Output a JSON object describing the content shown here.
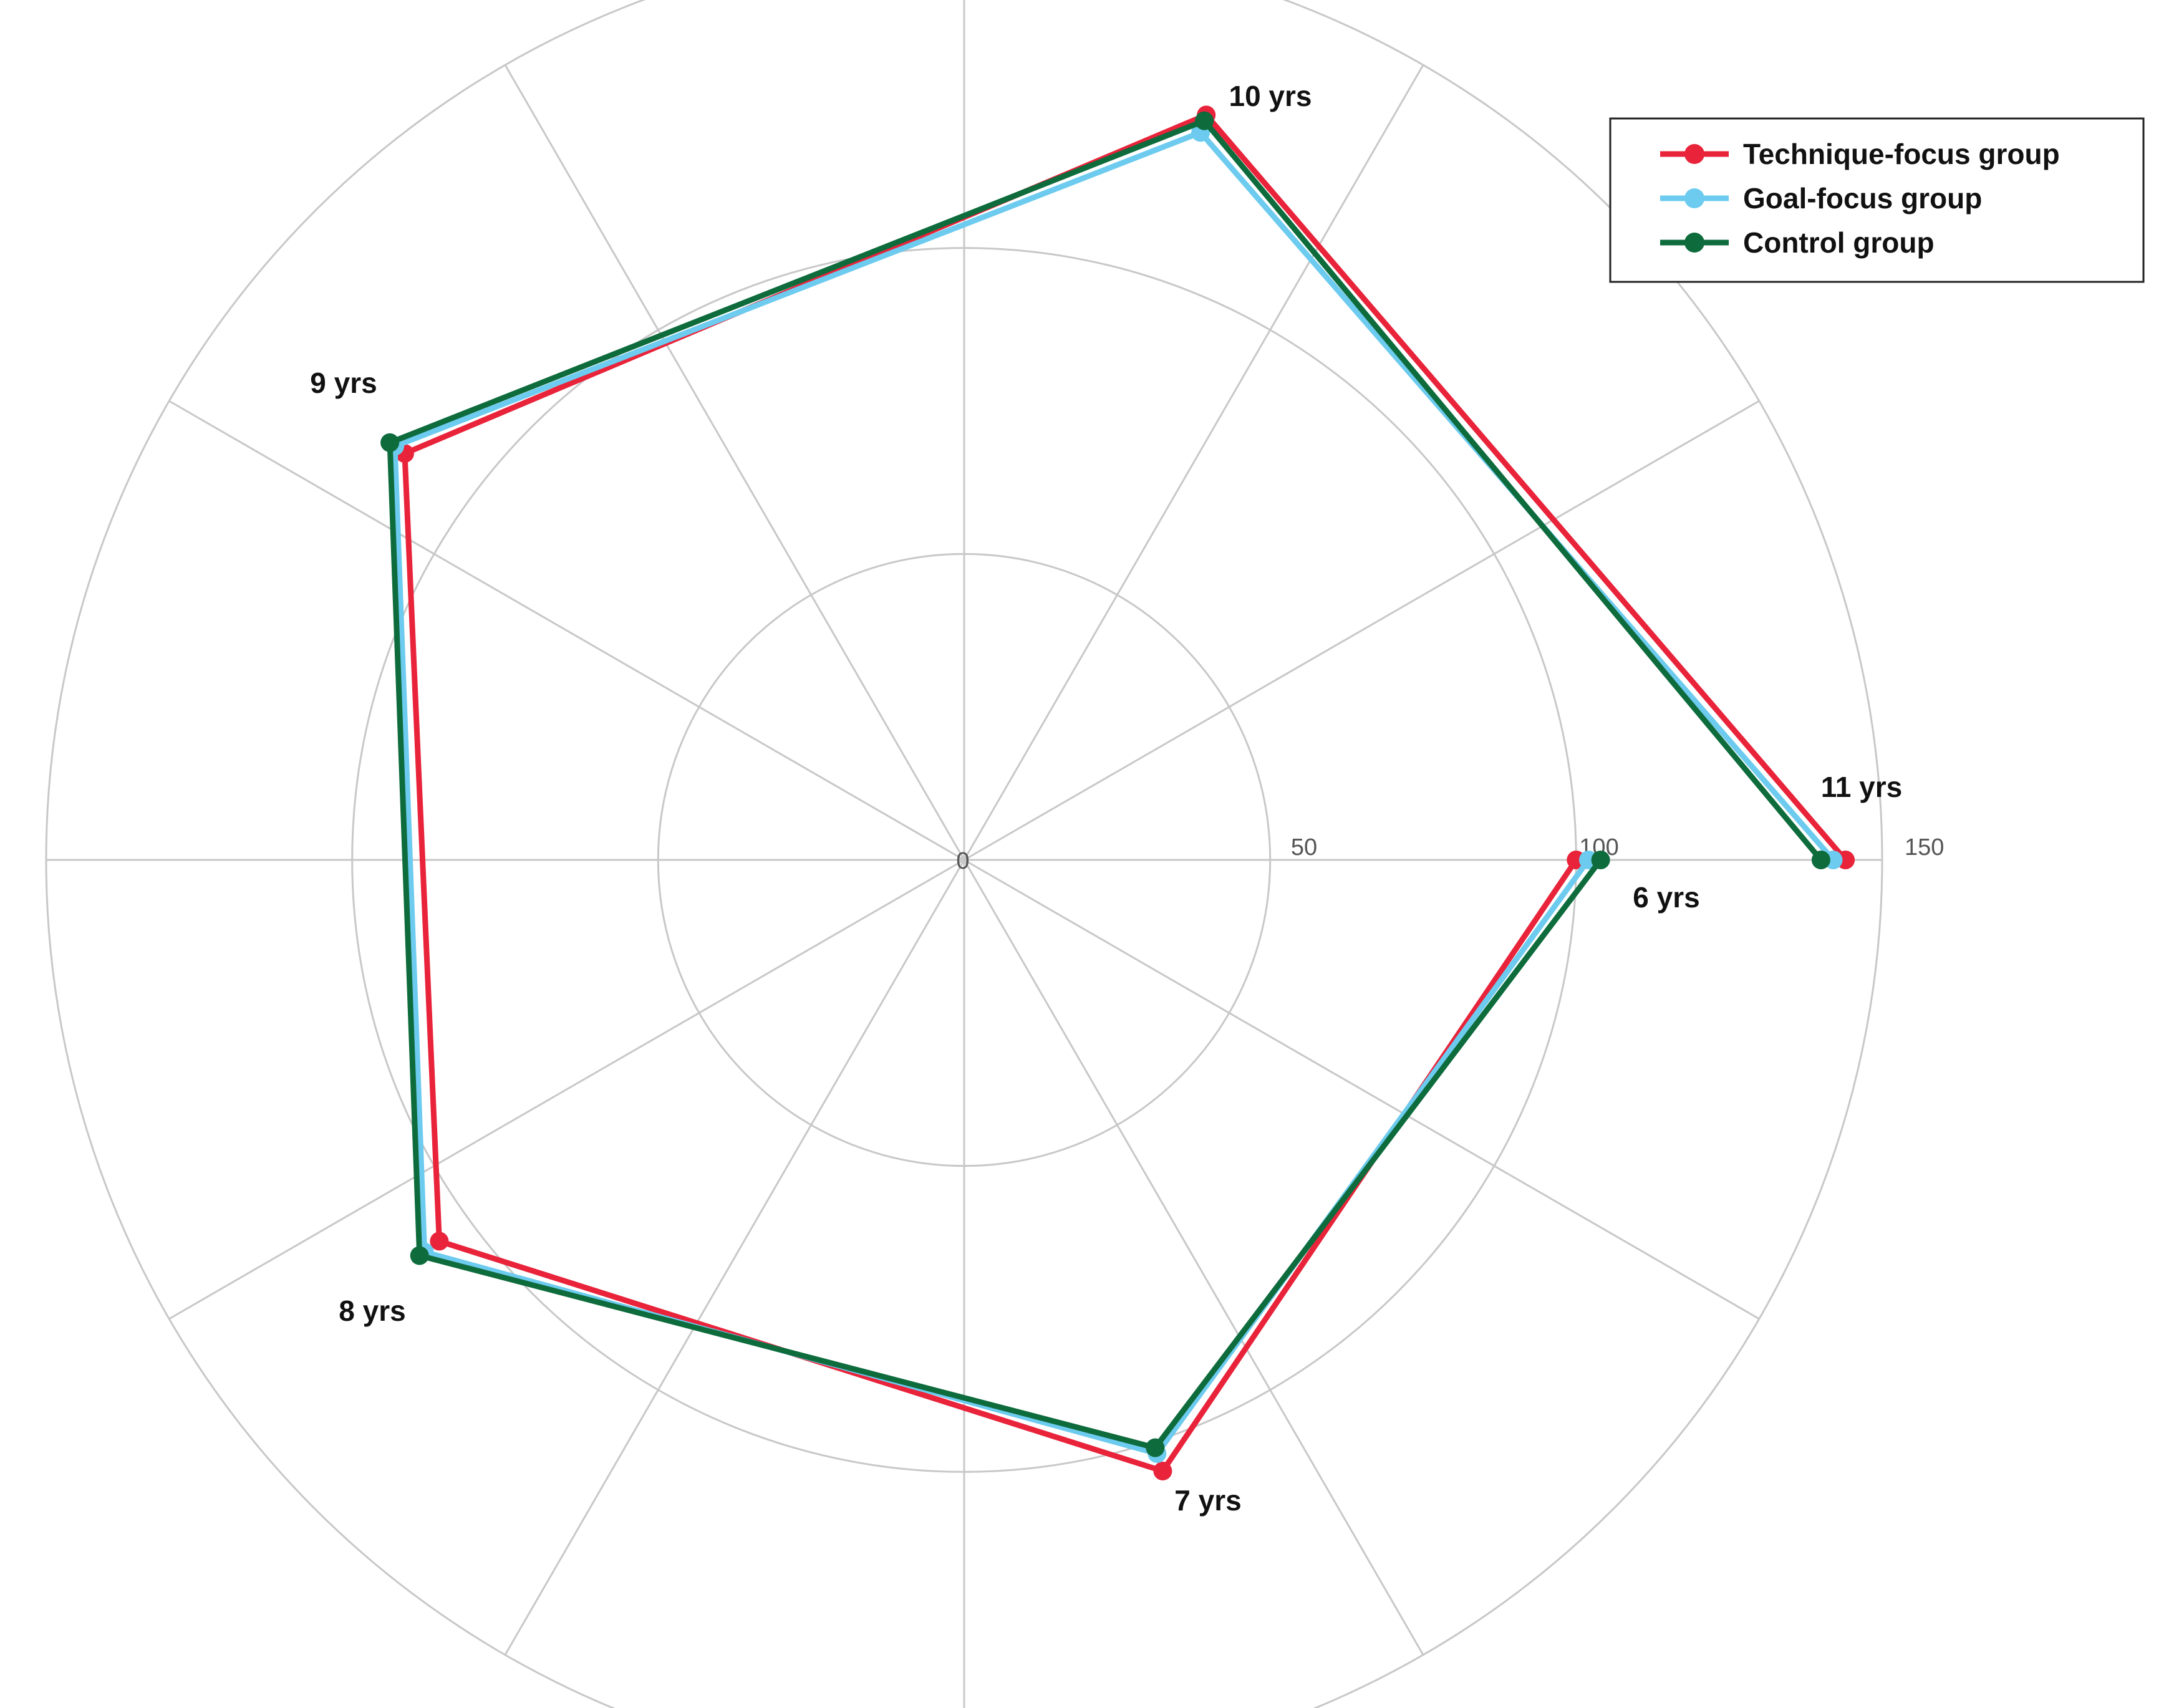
{
  "chart_data": {
    "type": "radar",
    "categories": [
      "6 yrs",
      "7 yrs",
      "8 yrs",
      "9 yrs",
      "10 yrs",
      "11 yrs"
    ],
    "radial_ticks": [
      "0",
      "50",
      "100",
      "150"
    ],
    "rlim": [
      0,
      150
    ],
    "grid": true,
    "legend_position": "top-right",
    "series": [
      {
        "name": "Technique-focus group",
        "color": "#e8233a",
        "values": [
          100,
          105,
          106,
          113,
          128,
          144
        ]
      },
      {
        "name": "Goal-focus group",
        "color": "#6ccbee",
        "values": [
          102,
          102,
          109,
          115,
          125,
          142
        ]
      },
      {
        "name": "Control group",
        "color": "#0d6b3c",
        "values": [
          104,
          101,
          110,
          116,
          127,
          140
        ]
      }
    ]
  }
}
